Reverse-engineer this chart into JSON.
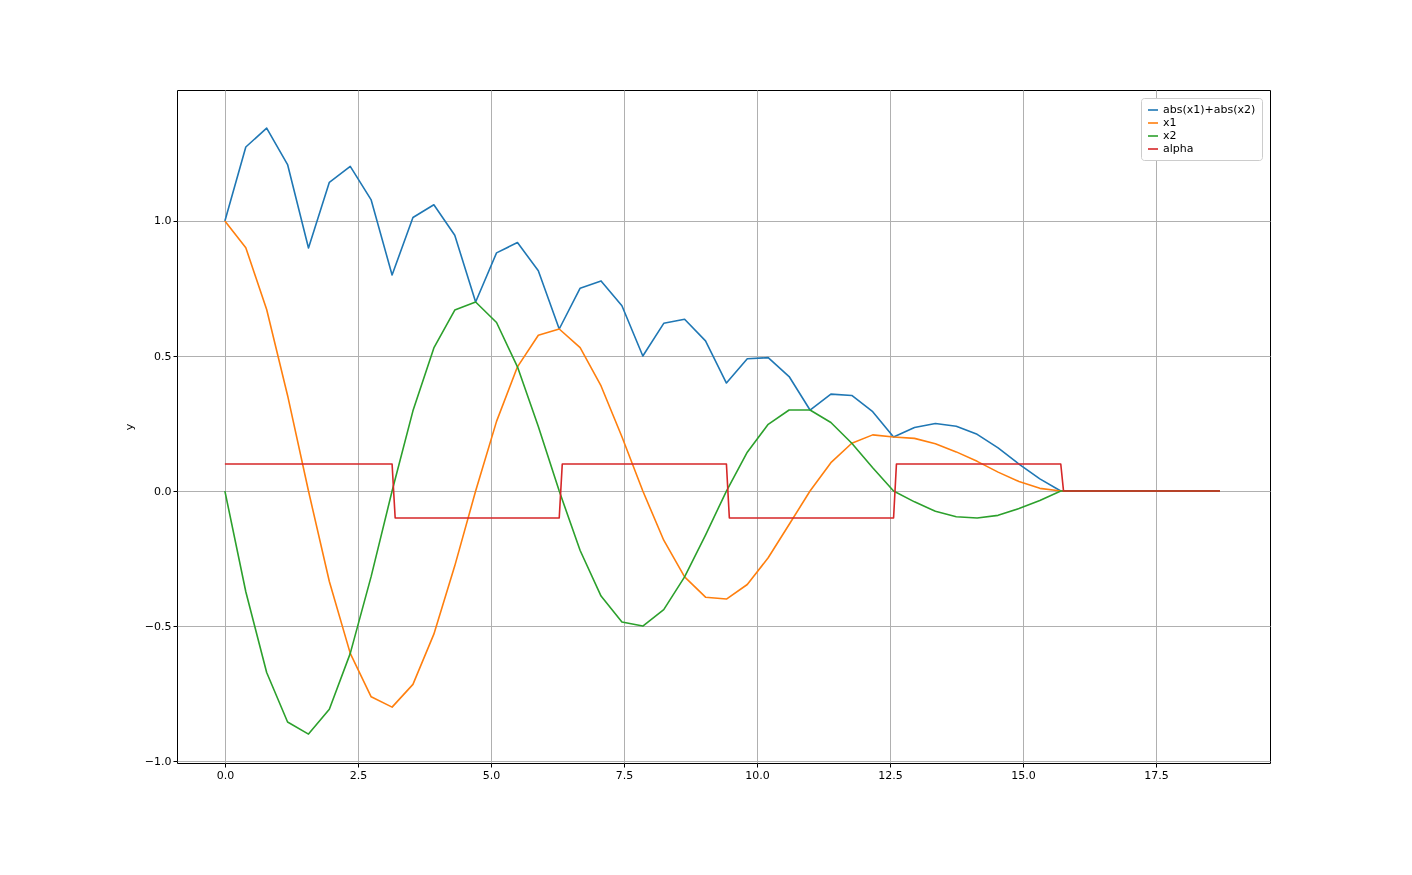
{
  "chart_data": {
    "type": "line",
    "ylabel": "y",
    "x": [
      0,
      0.393,
      0.785,
      1.178,
      1.571,
      1.963,
      2.356,
      2.749,
      3.142,
      3.534,
      3.927,
      4.32,
      4.712,
      5.105,
      5.498,
      5.89,
      6.283,
      6.676,
      7.069,
      7.461,
      7.854,
      8.247,
      8.639,
      9.032,
      9.425,
      9.817,
      10.21,
      10.603,
      10.996,
      11.388,
      11.781,
      12.174,
      12.566,
      12.959,
      13.352,
      13.744,
      14.137,
      14.53,
      14.923,
      15.315,
      15.708,
      17.0,
      18.7
    ],
    "series": [
      {
        "name": "abs(x1)+abs(x2)",
        "color": "#1f77b4",
        "values": [
          1,
          1.274,
          1.344,
          1.209,
          0.9,
          1.143,
          1.202,
          1.078,
          0.8,
          1.013,
          1.06,
          0.947,
          0.7,
          0.882,
          0.92,
          0.816,
          0.6,
          0.751,
          0.778,
          0.686,
          0.5,
          0.621,
          0.636,
          0.556,
          0.4,
          0.49,
          0.494,
          0.424,
          0.3,
          0.359,
          0.354,
          0.294,
          0.2,
          0.235,
          0.25,
          0.24,
          0.21,
          0.16,
          0.1,
          0.045,
          0,
          0,
          0
        ]
      },
      {
        "name": "x1",
        "color": "#ff7f0e",
        "values": [
          1,
          0.901,
          0.672,
          0.354,
          0,
          -0.335,
          -0.601,
          -0.762,
          -0.8,
          -0.716,
          -0.53,
          -0.277,
          0,
          0.258,
          0.46,
          0.577,
          0.6,
          0.531,
          0.389,
          0.201,
          0,
          -0.182,
          -0.318,
          -0.393,
          -0.4,
          -0.346,
          -0.247,
          -0.124,
          0,
          0.105,
          0.177,
          0.208,
          0.2,
          0.195,
          0.175,
          0.145,
          0.11,
          0.07,
          0.035,
          0.01,
          0,
          0,
          0
        ]
      },
      {
        "name": "x2",
        "color": "#2ca02c",
        "values": [
          0,
          -0.373,
          -0.672,
          -0.855,
          -0.9,
          -0.808,
          -0.601,
          -0.316,
          0,
          0.297,
          0.53,
          0.67,
          0.7,
          0.624,
          0.46,
          0.239,
          0,
          -0.22,
          -0.389,
          -0.485,
          -0.5,
          -0.439,
          -0.318,
          -0.163,
          0,
          0.144,
          0.247,
          0.3,
          0.3,
          0.254,
          0.177,
          0.086,
          0,
          -0.04,
          -0.075,
          -0.095,
          -0.1,
          -0.09,
          -0.065,
          -0.035,
          0,
          0,
          0
        ]
      },
      {
        "name": "alpha",
        "color": "#d62728",
        "x": [
          0,
          3.142,
          3.2,
          6.283,
          6.34,
          9.425,
          9.48,
          12.566,
          12.62,
          15.708,
          15.76,
          18.7
        ],
        "values": [
          0.1,
          0.1,
          -0.1,
          -0.1,
          0.1,
          0.1,
          -0.1,
          -0.1,
          0.1,
          0.1,
          0,
          0
        ]
      }
    ],
    "xlim": [
      -0.9,
      19.64
    ],
    "ylim": [
      -1.007,
      1.485
    ],
    "xticks": [
      {
        "value": 0,
        "label": "0.0"
      },
      {
        "value": 2.5,
        "label": "2.5"
      },
      {
        "value": 5,
        "label": "5.0"
      },
      {
        "value": 7.5,
        "label": "7.5"
      },
      {
        "value": 10,
        "label": "10.0"
      },
      {
        "value": 12.5,
        "label": "12.5"
      },
      {
        "value": 15,
        "label": "15.0"
      },
      {
        "value": 17.5,
        "label": "17.5"
      }
    ],
    "yticks": [
      {
        "value": -1,
        "label": "−1.0"
      },
      {
        "value": -0.5,
        "label": "−0.5"
      },
      {
        "value": 0,
        "label": "0.0"
      },
      {
        "value": 0.5,
        "label": "0.5"
      },
      {
        "value": 1,
        "label": "1.0"
      }
    ],
    "grid": true,
    "legend": "top right",
    "line_style": "solid",
    "marker": "none"
  }
}
